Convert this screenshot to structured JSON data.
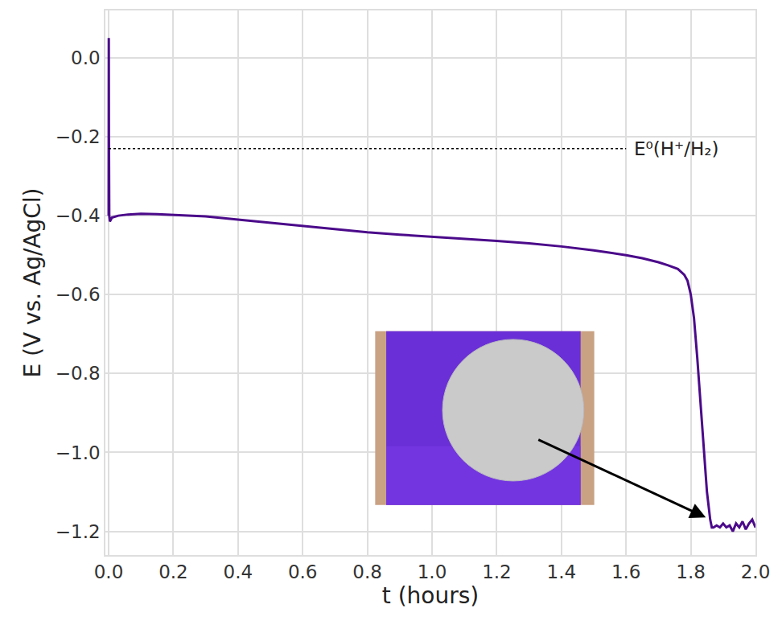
{
  "chart_data": {
    "type": "line",
    "x_label": "t (hours)",
    "y_label": "E (V vs. Ag/AgCl)",
    "x": [
      0.0,
      0.0005,
      0.001,
      0.002,
      0.004,
      0.01,
      0.03,
      0.06,
      0.1,
      0.15,
      0.2,
      0.3,
      0.4,
      0.5,
      0.6,
      0.7,
      0.8,
      0.9,
      1.0,
      1.1,
      1.2,
      1.3,
      1.4,
      1.5,
      1.6,
      1.65,
      1.7,
      1.73,
      1.76,
      1.78,
      1.79,
      1.8,
      1.81,
      1.82,
      1.83,
      1.84,
      1.85,
      1.86,
      1.865,
      1.87,
      1.88,
      1.89,
      1.9,
      1.91,
      1.92,
      1.93,
      1.94,
      1.95,
      1.96,
      1.97,
      1.98,
      1.99,
      2.0
    ],
    "series": [
      {
        "name": "E",
        "color": "#4b0a8a",
        "values": [
          -0.4,
          0.05,
          -0.2,
          -0.4,
          -0.415,
          -0.405,
          -0.4,
          -0.397,
          -0.395,
          -0.396,
          -0.398,
          -0.402,
          -0.41,
          -0.418,
          -0.426,
          -0.434,
          -0.442,
          -0.448,
          -0.453,
          -0.458,
          -0.464,
          -0.47,
          -0.478,
          -0.488,
          -0.5,
          -0.508,
          -0.518,
          -0.526,
          -0.535,
          -0.55,
          -0.565,
          -0.6,
          -0.66,
          -0.76,
          -0.88,
          -1.0,
          -1.1,
          -1.17,
          -1.19,
          -1.19,
          -1.185,
          -1.19,
          -1.18,
          -1.19,
          -1.185,
          -1.2,
          -1.18,
          -1.19,
          -1.175,
          -1.195,
          -1.18,
          -1.17,
          -1.19
        ]
      }
    ],
    "xlim": [
      -0.01,
      2.0
    ],
    "ylim": [
      -1.26,
      0.12
    ],
    "xticks": [
      {
        "value": 0.0,
        "label": "0.0"
      },
      0.2,
      0.4,
      0.6,
      0.8,
      {
        "value": 1.0,
        "label": "1.0"
      },
      1.2,
      1.4,
      1.6,
      1.8,
      {
        "value": 2.0,
        "label": "2.0"
      }
    ],
    "yticks": [
      {
        "value": 0.0,
        "label": "0.0"
      },
      {
        "value": -0.2,
        "label": "−0.2"
      },
      {
        "value": -0.4,
        "label": "−0.4"
      },
      {
        "value": -0.6,
        "label": "−0.6"
      },
      {
        "value": -0.8,
        "label": "−0.8"
      },
      {
        "value": -1.0,
        "label": "−1.0"
      },
      {
        "value": -1.2,
        "label": "−1.2"
      }
    ],
    "grid": true,
    "reference_lines": [
      {
        "label": "E⁰(H⁺/H₂)",
        "value": -0.23,
        "x": [
          0.0,
          1.6
        ],
        "line_style": "dotted"
      }
    ]
  }
}
